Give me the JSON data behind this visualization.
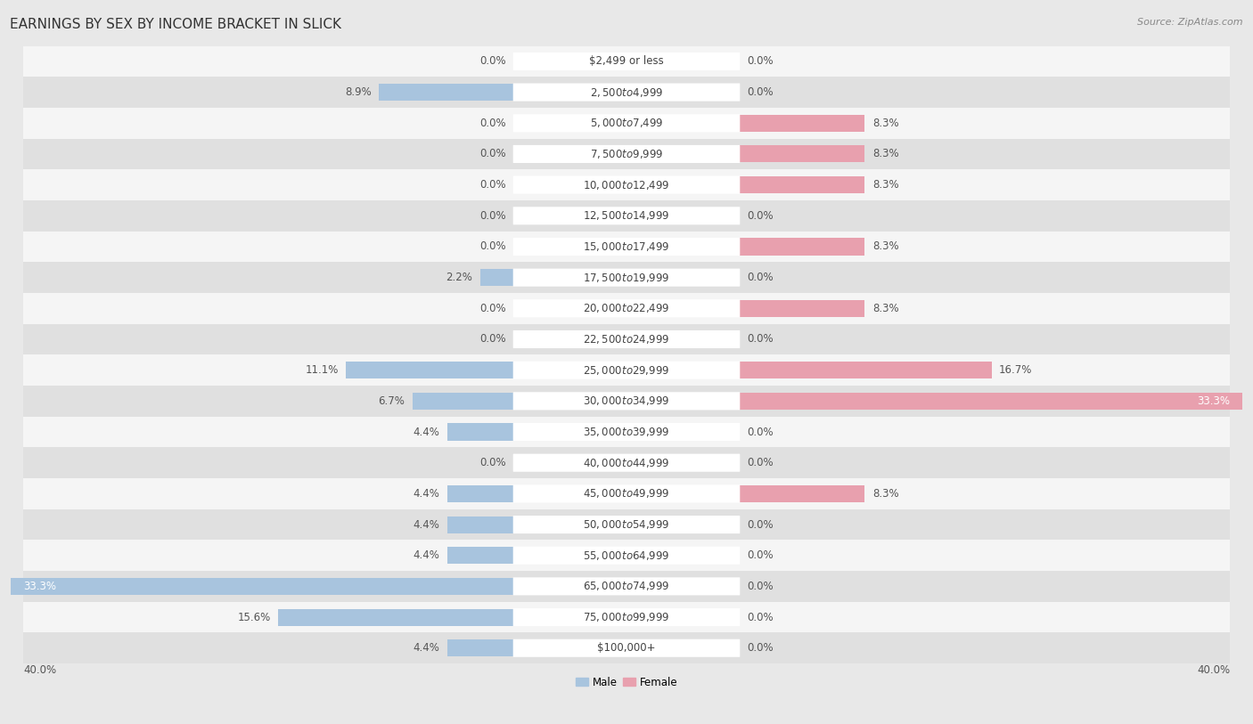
{
  "title": "EARNINGS BY SEX BY INCOME BRACKET IN SLICK",
  "source": "Source: ZipAtlas.com",
  "categories": [
    "$2,499 or less",
    "$2,500 to $4,999",
    "$5,000 to $7,499",
    "$7,500 to $9,999",
    "$10,000 to $12,499",
    "$12,500 to $14,999",
    "$15,000 to $17,499",
    "$17,500 to $19,999",
    "$20,000 to $22,499",
    "$22,500 to $24,999",
    "$25,000 to $29,999",
    "$30,000 to $34,999",
    "$35,000 to $39,999",
    "$40,000 to $44,999",
    "$45,000 to $49,999",
    "$50,000 to $54,999",
    "$55,000 to $64,999",
    "$65,000 to $74,999",
    "$75,000 to $99,999",
    "$100,000+"
  ],
  "male_values": [
    0.0,
    8.9,
    0.0,
    0.0,
    0.0,
    0.0,
    0.0,
    2.2,
    0.0,
    0.0,
    11.1,
    6.7,
    4.4,
    0.0,
    4.4,
    4.4,
    4.4,
    33.3,
    15.6,
    4.4
  ],
  "female_values": [
    0.0,
    0.0,
    8.3,
    8.3,
    8.3,
    0.0,
    8.3,
    0.0,
    8.3,
    0.0,
    16.7,
    33.3,
    0.0,
    0.0,
    8.3,
    0.0,
    0.0,
    0.0,
    0.0,
    0.0
  ],
  "male_color": "#a8c4de",
  "female_color": "#e8a0ae",
  "male_label": "Male",
  "female_label": "Female",
  "x_max": 40.0,
  "bg_color": "#e8e8e8",
  "row_colors": [
    "#f5f5f5",
    "#e0e0e0"
  ],
  "label_box_color": "#ffffff",
  "title_fontsize": 11,
  "label_fontsize": 8.5,
  "val_fontsize": 8.5,
  "source_fontsize": 8,
  "axis_fontsize": 8.5
}
